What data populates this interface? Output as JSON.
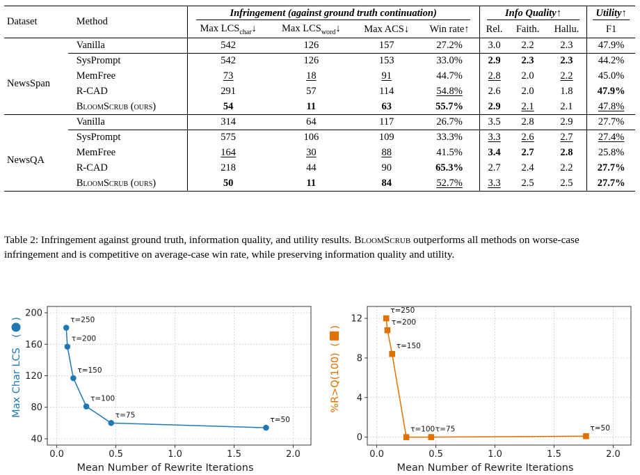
{
  "table": {
    "hdr_dataset": "Dataset",
    "hdr_method": "Method",
    "grp_infringement": "Infringement (against ground truth continuation)",
    "grp_info": "Info Quality↑",
    "grp_utility": "Utility↑",
    "col_lcs_char_a": "Max LCS",
    "col_lcs_char_sub": "char",
    "col_lcs_char_b": "↓",
    "col_lcs_word_a": "Max LCS",
    "col_lcs_word_sub": "word",
    "col_lcs_word_b": "↓",
    "col_acs": "Max ACS↓",
    "col_win": "Win rate↑",
    "col_rel": "Rel.",
    "col_faith": "Faith.",
    "col_hallu": "Hallu.",
    "col_f1": "F1",
    "datasets": [
      {
        "name": "NewsSpan",
        "rows": [
          {
            "method": "Vanilla",
            "v": [
              "542",
              "126",
              "157",
              "27.2%",
              "3.0",
              "2.2",
              "2.3",
              "47.9%"
            ],
            "b": [
              0,
              0,
              0,
              0,
              0,
              0,
              0,
              0
            ],
            "u": [
              0,
              0,
              0,
              0,
              0,
              0,
              0,
              0
            ]
          },
          {
            "method": "SysPrompt",
            "v": [
              "542",
              "126",
              "153",
              "33.0%",
              "2.9",
              "2.3",
              "2.3",
              "44.2%"
            ],
            "b": [
              0,
              0,
              0,
              0,
              1,
              1,
              1,
              0
            ],
            "u": [
              0,
              0,
              0,
              0,
              0,
              0,
              0,
              0
            ]
          },
          {
            "method": "MemFree",
            "v": [
              "73",
              "18",
              "91",
              "44.7%",
              "2.8",
              "2.0",
              "2.2",
              "45.0%"
            ],
            "b": [
              0,
              0,
              0,
              0,
              0,
              0,
              0,
              0
            ],
            "u": [
              1,
              1,
              1,
              0,
              1,
              0,
              1,
              0
            ]
          },
          {
            "method": "R-CAD",
            "v": [
              "291",
              "57",
              "114",
              "54.8%",
              "2.6",
              "2.0",
              "1.8",
              "47.9%"
            ],
            "b": [
              0,
              0,
              0,
              0,
              0,
              0,
              0,
              1
            ],
            "u": [
              0,
              0,
              0,
              1,
              0,
              0,
              0,
              0
            ]
          },
          {
            "method": "BloomScrub (ours)",
            "v": [
              "54",
              "11",
              "63",
              "55.7%",
              "2.9",
              "2.1",
              "2.1",
              "47.8%"
            ],
            "b": [
              1,
              1,
              1,
              1,
              1,
              0,
              0,
              0
            ],
            "u": [
              0,
              0,
              0,
              0,
              0,
              1,
              0,
              1
            ],
            "sc": true
          }
        ]
      },
      {
        "name": "NewsQA",
        "rows": [
          {
            "method": "Vanilla",
            "v": [
              "314",
              "64",
              "117",
              "26.7%",
              "3.5",
              "2.8",
              "2.9",
              "27.7%"
            ],
            "b": [
              0,
              0,
              0,
              0,
              0,
              0,
              0,
              0
            ],
            "u": [
              0,
              0,
              0,
              0,
              0,
              0,
              0,
              0
            ]
          },
          {
            "method": "SysPrompt",
            "v": [
              "575",
              "106",
              "109",
              "33.3%",
              "3.3",
              "2.6",
              "2.7",
              "27.4%"
            ],
            "b": [
              0,
              0,
              0,
              0,
              0,
              0,
              0,
              0
            ],
            "u": [
              0,
              0,
              0,
              0,
              1,
              1,
              1,
              1
            ]
          },
          {
            "method": "MemFree",
            "v": [
              "164",
              "30",
              "88",
              "41.5%",
              "3.4",
              "2.7",
              "2.8",
              "25.8%"
            ],
            "b": [
              0,
              0,
              0,
              0,
              1,
              1,
              1,
              0
            ],
            "u": [
              1,
              1,
              1,
              0,
              0,
              0,
              0,
              0
            ]
          },
          {
            "method": "R-CAD",
            "v": [
              "218",
              "44",
              "90",
              "65.3%",
              "2.7",
              "2.4",
              "2.2",
              "27.7%"
            ],
            "b": [
              0,
              0,
              0,
              1,
              0,
              0,
              0,
              1
            ],
            "u": [
              0,
              0,
              0,
              0,
              0,
              0,
              0,
              0
            ]
          },
          {
            "method": "BloomScrub (ours)",
            "v": [
              "50",
              "11",
              "84",
              "52.7%",
              "3.3",
              "2.5",
              "2.5",
              "27.7%"
            ],
            "b": [
              1,
              1,
              1,
              0,
              0,
              0,
              0,
              1
            ],
            "u": [
              0,
              0,
              0,
              1,
              1,
              0,
              0,
              0
            ],
            "sc": true
          }
        ]
      }
    ]
  },
  "caption": "Table 2: Infringement against ground truth, information quality, and utility results. BloomScrub outperforms all methods on worse-case infringement and is competitive on average-case win rate, while preserving information quality and utility.",
  "caption_parts": {
    "pre": "Table 2: Infringement against ground truth, information quality, and utility results. ",
    "name": "BloomScrub",
    "post": " outperforms all methods on worse-case infringement and is competitive on average-case win rate, while preserving information quality and utility."
  },
  "chart_data": [
    {
      "type": "line",
      "xlabel": "Mean Number of Rewrite Iterations",
      "ylabel": "Max Char LCS",
      "color": "#1f77b4",
      "marker": "circle",
      "xlim": [
        -0.08,
        2.15
      ],
      "ylim": [
        32,
        208
      ],
      "xticks": [
        0.0,
        0.5,
        1.0,
        1.5,
        2.0
      ],
      "xtick_labels": [
        "0.0",
        "0.5",
        "1.0",
        "1.5",
        "2.0"
      ],
      "yticks": [
        40,
        80,
        120,
        160,
        200
      ],
      "ytick_labels": [
        "40",
        "80",
        "120",
        "160",
        "200"
      ],
      "grid": true,
      "points": [
        {
          "x": 0.08,
          "y": 181,
          "label": "τ=250"
        },
        {
          "x": 0.09,
          "y": 157,
          "label": "τ=200"
        },
        {
          "x": 0.14,
          "y": 117,
          "label": "τ=150"
        },
        {
          "x": 0.25,
          "y": 81,
          "label": "τ=100"
        },
        {
          "x": 0.46,
          "y": 60,
          "label": "τ=75"
        },
        {
          "x": 1.77,
          "y": 54,
          "label": "τ=50"
        }
      ]
    },
    {
      "type": "line",
      "xlabel": "Mean Number of Rewrite Iterations",
      "ylabel": "%R>Q(100)",
      "color": "#e07000",
      "marker": "square",
      "xlim": [
        -0.08,
        2.15
      ],
      "ylim": [
        -0.8,
        13.2
      ],
      "xticks": [
        0.0,
        0.5,
        1.0,
        1.5,
        2.0
      ],
      "xtick_labels": [
        "0.0",
        "0.5",
        "1.0",
        "1.5",
        "2.0"
      ],
      "yticks": [
        0,
        4,
        8,
        12
      ],
      "ytick_labels": [
        "0",
        "4",
        "8",
        "12"
      ],
      "grid": true,
      "points": [
        {
          "x": 0.08,
          "y": 12.0,
          "label": "τ=250"
        },
        {
          "x": 0.09,
          "y": 10.8,
          "label": "τ=200"
        },
        {
          "x": 0.13,
          "y": 8.4,
          "label": "τ=150"
        },
        {
          "x": 0.25,
          "y": 0.0,
          "label": "τ=100"
        },
        {
          "x": 0.46,
          "y": 0.0,
          "label": "τ=75"
        },
        {
          "x": 1.77,
          "y": 0.1,
          "label": "τ=50"
        }
      ]
    }
  ]
}
